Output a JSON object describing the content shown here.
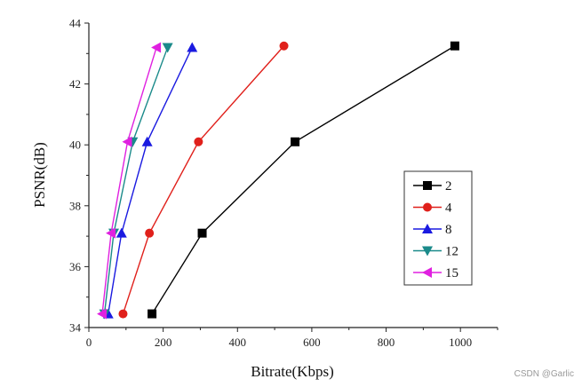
{
  "chart_data": {
    "type": "line",
    "xlabel": "Bitrate(Kbps)",
    "ylabel": "PSNR(dB)",
    "xlim": [
      0,
      1100
    ],
    "ylim": [
      34,
      44
    ],
    "xticks": [
      0,
      200,
      400,
      600,
      800,
      1000
    ],
    "yticks": [
      34,
      36,
      38,
      40,
      42,
      44
    ],
    "grid": false,
    "legend": "right-middle",
    "series": [
      {
        "name": "2",
        "color": "#000000",
        "marker": "square",
        "x": [
          170,
          305,
          555,
          985
        ],
        "y": [
          34.45,
          37.1,
          40.1,
          43.25
        ]
      },
      {
        "name": "4",
        "color": "#e0201b",
        "marker": "circle",
        "x": [
          92,
          163,
          295,
          525
        ],
        "y": [
          34.45,
          37.1,
          40.1,
          43.25
        ]
      },
      {
        "name": "8",
        "color": "#1a1ae0",
        "marker": "triangle-up",
        "x": [
          52,
          88,
          157,
          278
        ],
        "y": [
          34.45,
          37.1,
          40.1,
          43.2
        ]
      },
      {
        "name": "12",
        "color": "#1a8a8a",
        "marker": "triangle-down",
        "x": [
          42,
          67,
          118,
          212
        ],
        "y": [
          34.45,
          37.1,
          40.1,
          43.2
        ]
      },
      {
        "name": "15",
        "color": "#e020e0",
        "marker": "triangle-left",
        "x": [
          36,
          60,
          104,
          182
        ],
        "y": [
          34.45,
          37.1,
          40.1,
          43.2
        ]
      }
    ]
  },
  "watermark": "CSDN @Garlic"
}
